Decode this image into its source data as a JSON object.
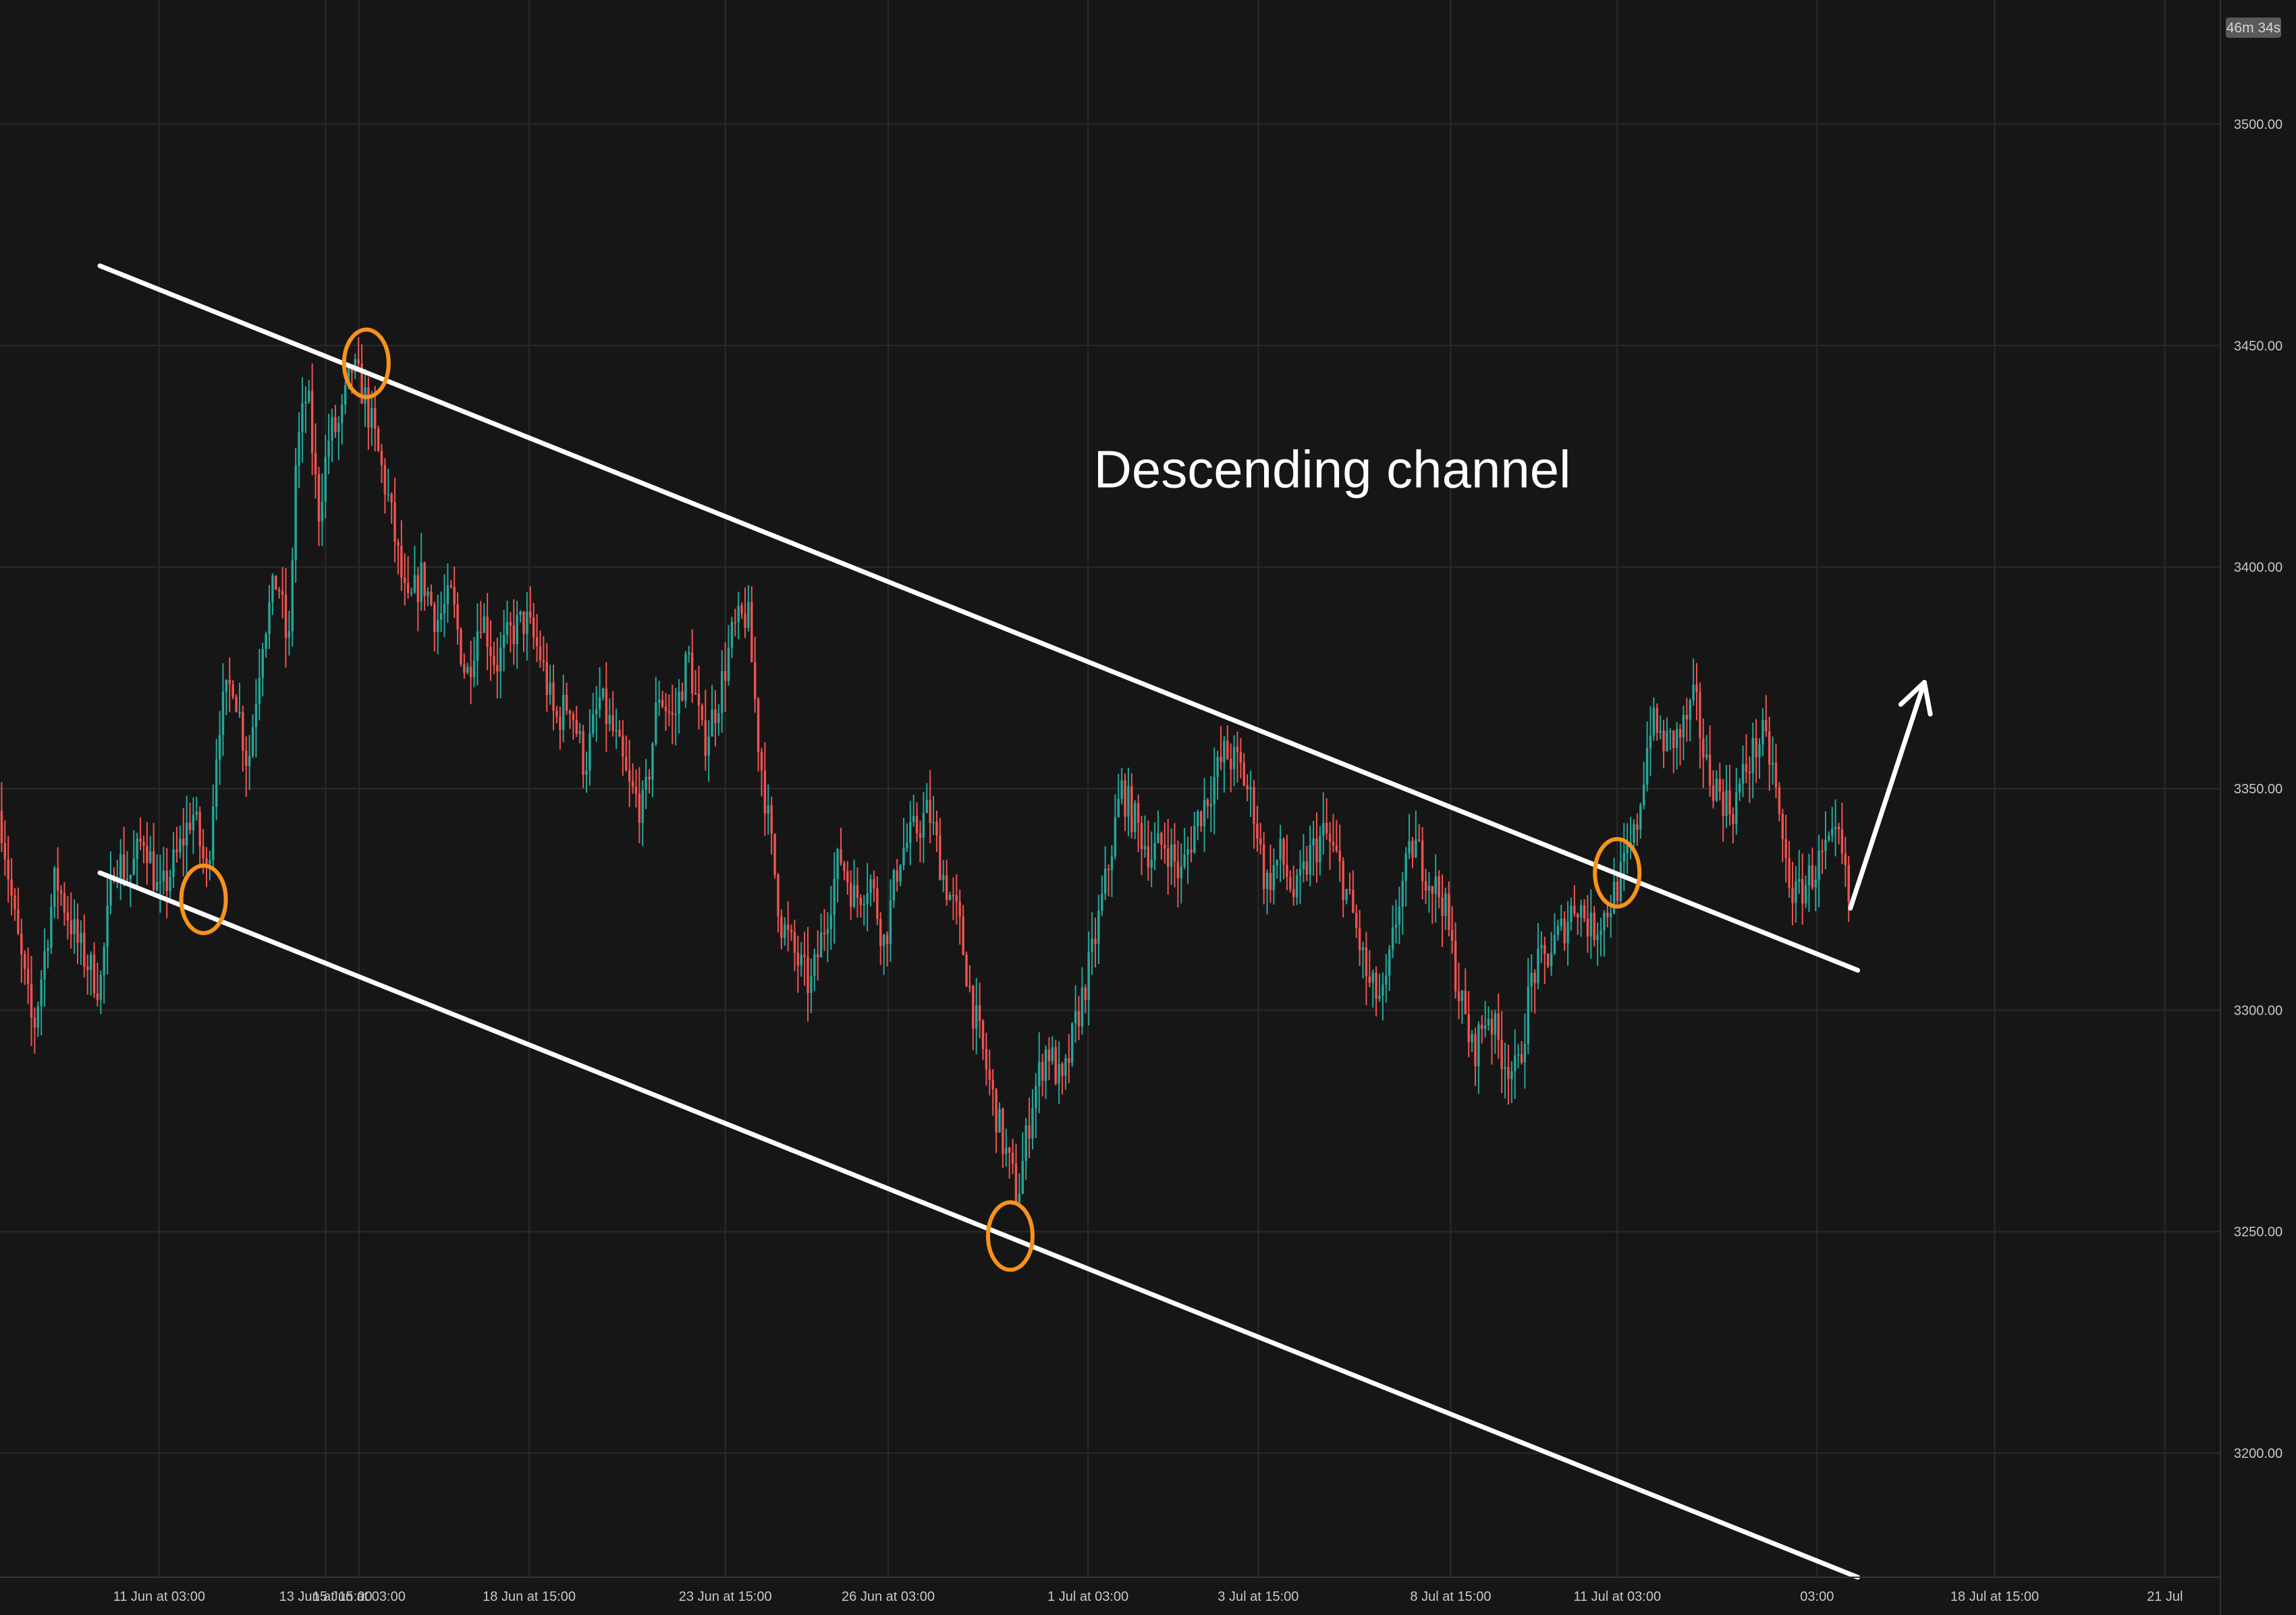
{
  "chart_data": {
    "type": "candlestick",
    "title": "",
    "xlabel": "",
    "ylabel": "",
    "ylim": [
      3172,
      3528
    ],
    "xlim": [
      0,
      60
    ],
    "y_axis_position": "right",
    "grid": true,
    "y_ticks": [
      {
        "value": 3500,
        "label": "3500.00"
      },
      {
        "value": 3450,
        "label": "3450.00"
      },
      {
        "value": 3400,
        "label": "3400.00"
      },
      {
        "value": 3350,
        "label": "3350.00"
      },
      {
        "value": 3300,
        "label": "3300.00"
      },
      {
        "value": 3250,
        "label": "3250.00"
      },
      {
        "value": 3200,
        "label": "3200.00"
      }
    ],
    "x_ticks": [
      {
        "x": 4.3,
        "label": "11 Jun at 03:00"
      },
      {
        "x": 8.8,
        "label": "13 Jun at 15:00"
      },
      {
        "x": 9.7,
        "label": "15 Jun at 03:00"
      },
      {
        "x": 14.3,
        "label": "18 Jun at 15:00"
      },
      {
        "x": 19.6,
        "label": "23 Jun at 15:00"
      },
      {
        "x": 24.0,
        "label": "26 Jun at 03:00"
      },
      {
        "x": 29.4,
        "label": "1 Jul at 03:00"
      },
      {
        "x": 34.0,
        "label": "3 Jul at 15:00"
      },
      {
        "x": 39.2,
        "label": "8 Jul at 15:00"
      },
      {
        "x": 43.7,
        "label": "11 Jul at 03:00"
      },
      {
        "x": 49.1,
        "label": "03:00"
      },
      {
        "x": 53.9,
        "label": "18 Jul at 15:00"
      },
      {
        "x": 58.5,
        "label": "21 Jul"
      }
    ],
    "price_path": [
      [
        0,
        3345
      ],
      [
        0.4,
        3320
      ],
      [
        0.9,
        3295
      ],
      [
        1.5,
        3330
      ],
      [
        2.1,
        3315
      ],
      [
        2.7,
        3305
      ],
      [
        3.1,
        3335
      ],
      [
        3.5,
        3330
      ],
      [
        3.9,
        3340
      ],
      [
        4.3,
        3325
      ],
      [
        4.8,
        3335
      ],
      [
        5.2,
        3345
      ],
      [
        5.6,
        3330
      ],
      [
        5.9,
        3365
      ],
      [
        6.3,
        3375
      ],
      [
        6.7,
        3355
      ],
      [
        7.1,
        3385
      ],
      [
        7.5,
        3398
      ],
      [
        7.8,
        3380
      ],
      [
        8.0,
        3425
      ],
      [
        8.3,
        3440
      ],
      [
        8.6,
        3412
      ],
      [
        8.9,
        3430
      ],
      [
        9.2,
        3432
      ],
      [
        9.5,
        3445
      ],
      [
        9.8,
        3440
      ],
      [
        10.1,
        3430
      ],
      [
        10.5,
        3415
      ],
      [
        10.8,
        3400
      ],
      [
        11.0,
        3390
      ],
      [
        11.4,
        3398
      ],
      [
        11.8,
        3388
      ],
      [
        12.2,
        3393
      ],
      [
        12.6,
        3375
      ],
      [
        13.0,
        3390
      ],
      [
        13.4,
        3378
      ],
      [
        13.8,
        3385
      ],
      [
        14.2,
        3388
      ],
      [
        14.6,
        3380
      ],
      [
        15.0,
        3365
      ],
      [
        15.4,
        3370
      ],
      [
        15.8,
        3355
      ],
      [
        16.2,
        3370
      ],
      [
        16.6,
        3362
      ],
      [
        17.0,
        3350
      ],
      [
        17.4,
        3345
      ],
      [
        17.8,
        3372
      ],
      [
        18.2,
        3365
      ],
      [
        18.6,
        3380
      ],
      [
        19.0,
        3360
      ],
      [
        19.4,
        3370
      ],
      [
        19.8,
        3385
      ],
      [
        20.2,
        3390
      ],
      [
        20.5,
        3360
      ],
      [
        20.8,
        3340
      ],
      [
        21.1,
        3320
      ],
      [
        21.5,
        3312
      ],
      [
        21.9,
        3305
      ],
      [
        22.3,
        3320
      ],
      [
        22.7,
        3335
      ],
      [
        23.1,
        3325
      ],
      [
        23.5,
        3330
      ],
      [
        23.9,
        3315
      ],
      [
        24.3,
        3335
      ],
      [
        24.7,
        3340
      ],
      [
        25.1,
        3345
      ],
      [
        25.5,
        3330
      ],
      [
        25.9,
        3320
      ],
      [
        26.3,
        3300
      ],
      [
        26.7,
        3285
      ],
      [
        27.1,
        3270
      ],
      [
        27.5,
        3258
      ],
      [
        27.9,
        3280
      ],
      [
        28.3,
        3292
      ],
      [
        28.7,
        3282
      ],
      [
        29.1,
        3298
      ],
      [
        29.5,
        3312
      ],
      [
        29.9,
        3330
      ],
      [
        30.3,
        3350
      ],
      [
        30.7,
        3342
      ],
      [
        31.1,
        3335
      ],
      [
        31.5,
        3338
      ],
      [
        31.9,
        3330
      ],
      [
        32.3,
        3342
      ],
      [
        32.7,
        3350
      ],
      [
        33.1,
        3358
      ],
      [
        33.5,
        3355
      ],
      [
        33.9,
        3345
      ],
      [
        34.2,
        3328
      ],
      [
        34.6,
        3335
      ],
      [
        35.0,
        3325
      ],
      [
        35.4,
        3335
      ],
      [
        35.8,
        3340
      ],
      [
        36.2,
        3332
      ],
      [
        36.6,
        3320
      ],
      [
        37.0,
        3305
      ],
      [
        37.4,
        3302
      ],
      [
        37.8,
        3325
      ],
      [
        38.2,
        3338
      ],
      [
        38.6,
        3330
      ],
      [
        39.0,
        3325
      ],
      [
        39.4,
        3305
      ],
      [
        39.8,
        3290
      ],
      [
        40.2,
        3300
      ],
      [
        40.6,
        3290
      ],
      [
        41.0,
        3285
      ],
      [
        41.4,
        3308
      ],
      [
        41.8,
        3312
      ],
      [
        42.2,
        3318
      ],
      [
        42.6,
        3325
      ],
      [
        43.0,
        3318
      ],
      [
        43.4,
        3322
      ],
      [
        43.8,
        3330
      ],
      [
        44.2,
        3340
      ],
      [
        44.6,
        3365
      ],
      [
        45.0,
        3360
      ],
      [
        45.4,
        3362
      ],
      [
        45.8,
        3370
      ],
      [
        46.1,
        3355
      ],
      [
        46.4,
        3350
      ],
      [
        46.8,
        3345
      ],
      [
        47.2,
        3355
      ],
      [
        47.6,
        3362
      ],
      [
        47.9,
        3355
      ],
      [
        48.2,
        3335
      ],
      [
        48.5,
        3325
      ],
      [
        48.9,
        3330
      ],
      [
        49.3,
        3335
      ],
      [
        49.7,
        3338
      ],
      [
        50.0,
        3322
      ]
    ],
    "channel_lines": [
      {
        "name": "",
        "from": [
          2.7,
          3468
        ],
        "to": [
          50.2,
          3309
        ]
      },
      {
        "name": "",
        "from": [
          2.7,
          3331
        ],
        "to": [
          50.2,
          3172
        ]
      }
    ],
    "highlighted_touches": [
      {
        "x": 5.5,
        "y": 3325
      },
      {
        "x": 9.9,
        "y": 3446
      },
      {
        "x": 27.3,
        "y": 3249
      },
      {
        "x": 43.7,
        "y": 3331
      }
    ],
    "projection_arrow": {
      "from": [
        50.0,
        3323
      ],
      "to": [
        52.0,
        3374
      ]
    },
    "annotations": [
      {
        "text": "Descending channel",
        "x": 36.0,
        "y": 3418
      }
    ],
    "candle_count": 560,
    "colors": {
      "background": "#161616",
      "grid": "#2a2a2a",
      "up": "#26a69a",
      "down": "#ef5350",
      "channel": "#ffffff",
      "highlight": "#f7931a",
      "axis_text": "#c8c8c8",
      "timer_bg": "#5a5a5a"
    }
  },
  "timer_badge": "46m 34s"
}
